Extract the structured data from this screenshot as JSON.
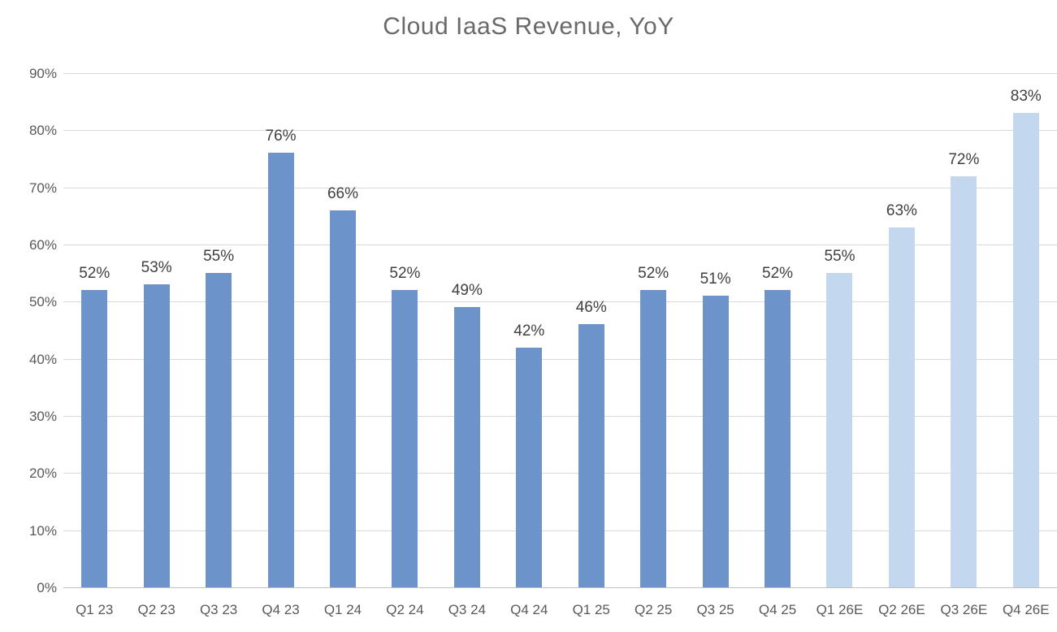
{
  "chart_data": {
    "type": "bar",
    "title": "Cloud IaaS Revenue, YoY",
    "categories": [
      "Q1 23",
      "Q2 23",
      "Q3 23",
      "Q4 23",
      "Q1 24",
      "Q2 24",
      "Q3 24",
      "Q4 24",
      "Q1 25",
      "Q2 25",
      "Q3 25",
      "Q4 25",
      "Q1 26E",
      "Q2 26E",
      "Q3 26E",
      "Q4 26E"
    ],
    "values": [
      52,
      53,
      55,
      76,
      66,
      52,
      49,
      42,
      46,
      52,
      51,
      52,
      55,
      63,
      72,
      83
    ],
    "data_labels": [
      "52%",
      "53%",
      "55%",
      "76%",
      "66%",
      "52%",
      "49%",
      "42%",
      "46%",
      "52%",
      "51%",
      "52%",
      "55%",
      "63%",
      "72%",
      "83%"
    ],
    "estimate_flags": [
      false,
      false,
      false,
      false,
      false,
      false,
      false,
      false,
      false,
      false,
      false,
      false,
      true,
      true,
      true,
      true
    ],
    "y_ticks": [
      "0%",
      "10%",
      "20%",
      "30%",
      "40%",
      "50%",
      "60%",
      "70%",
      "80%",
      "90%"
    ],
    "ylim": [
      0,
      90
    ],
    "xlabel": "",
    "ylabel": "",
    "grid": true,
    "legend_position": "none",
    "colors": {
      "actual_bar": "#6D94CA",
      "estimate_bar": "#C3D7EE",
      "title_text": "#6A6A6A",
      "axis_text": "#595959",
      "data_label_text": "#404040",
      "gridline": "#D9D9D9",
      "axis_line": "#C0C0C0",
      "background": "#FFFFFF"
    }
  }
}
